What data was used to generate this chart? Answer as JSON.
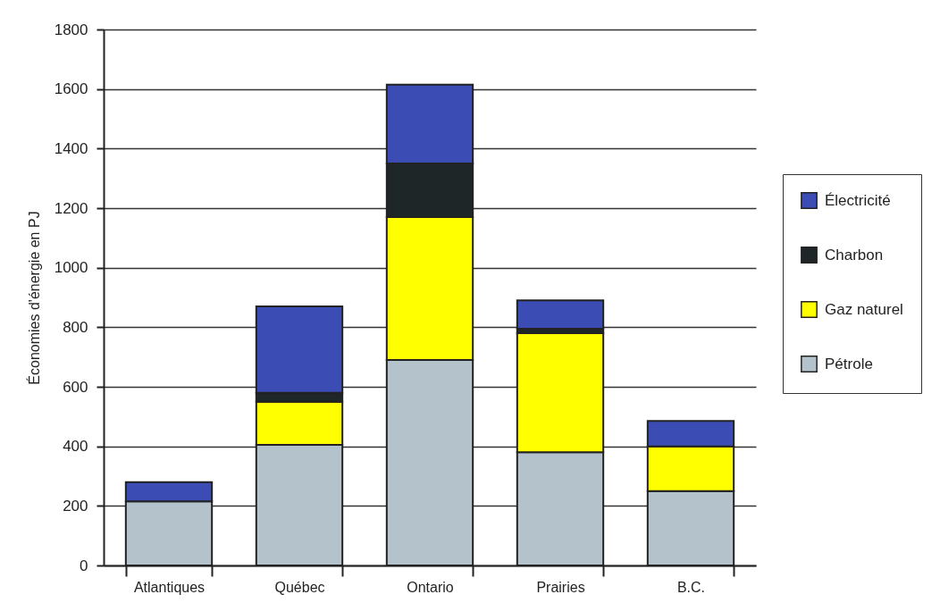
{
  "chart_data": {
    "type": "bar",
    "stacked": true,
    "ylabel": "Économies d'énergie en PJ",
    "categories": [
      "Atlantiques",
      "Québec",
      "Ontario",
      "Prairies",
      "B.C."
    ],
    "series": [
      {
        "name": "Pétrole",
        "color": "#b4c3cb",
        "values": [
          215,
          405,
          690,
          380,
          250
        ]
      },
      {
        "name": "Gaz naturel",
        "color": "#ffff00",
        "values": [
          0,
          145,
          480,
          400,
          150
        ]
      },
      {
        "name": "Charbon",
        "color": "#1e2628",
        "values": [
          0,
          30,
          180,
          15,
          0
        ]
      },
      {
        "name": "Électricité",
        "color": "#3b4db5",
        "values": [
          65,
          290,
          265,
          95,
          85
        ]
      }
    ],
    "ylim": [
      0,
      1800
    ],
    "yticks": [
      0,
      200,
      400,
      600,
      800,
      1000,
      1200,
      1400,
      1600,
      1800
    ],
    "grid": "y",
    "legend": "right"
  }
}
